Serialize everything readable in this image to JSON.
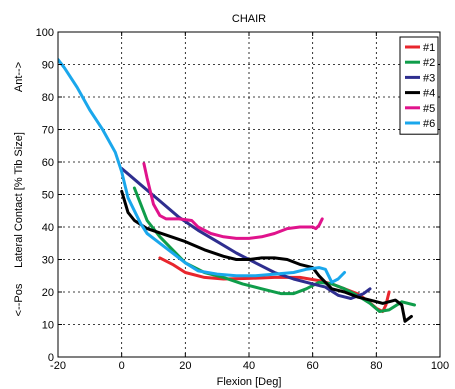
{
  "chart_data": {
    "type": "line",
    "title": "CHAIR",
    "xlabel": "Flexion [Deg]",
    "ylabel": "Lateral Contact [% Tib Size]",
    "y_annotations": {
      "top": "Ant-->",
      "bottom": "<--Pos"
    },
    "xlim": [
      -20,
      100
    ],
    "ylim": [
      0,
      100
    ],
    "xticks": [
      -20,
      0,
      20,
      40,
      60,
      80,
      100
    ],
    "yticks": [
      0,
      10,
      20,
      30,
      40,
      50,
      60,
      70,
      80,
      90,
      100
    ],
    "grid": true,
    "legend_position": "top-right",
    "series": [
      {
        "name": "#1",
        "color": "#e8262d",
        "points": [
          [
            12,
            30.5
          ],
          [
            16,
            28.5
          ],
          [
            20,
            26
          ],
          [
            26,
            24.5
          ],
          [
            32,
            24
          ],
          [
            40,
            24.2
          ],
          [
            48,
            24.5
          ],
          [
            56,
            24.5
          ],
          [
            62,
            23.5
          ],
          [
            66,
            22.5
          ],
          [
            70,
            21
          ],
          [
            74,
            19.5
          ],
          [
            77,
            17.5
          ],
          [
            80,
            15
          ],
          [
            82,
            14
          ],
          [
            83,
            16
          ],
          [
            84,
            20
          ]
        ]
      },
      {
        "name": "#2",
        "color": "#0f9d4a",
        "points": [
          [
            4,
            52
          ],
          [
            6,
            47
          ],
          [
            8,
            42
          ],
          [
            12,
            37
          ],
          [
            16,
            33
          ],
          [
            20,
            29
          ],
          [
            26,
            26
          ],
          [
            32,
            24.5
          ],
          [
            38,
            22.5
          ],
          [
            44,
            21
          ],
          [
            50,
            19.5
          ],
          [
            54,
            19.5
          ],
          [
            58,
            21
          ],
          [
            62,
            23
          ],
          [
            66,
            22.5
          ],
          [
            70,
            21
          ],
          [
            74,
            19
          ],
          [
            78,
            16.5
          ],
          [
            81,
            14
          ],
          [
            84,
            14.5
          ],
          [
            88,
            17
          ],
          [
            92,
            16
          ]
        ]
      },
      {
        "name": "#3",
        "color": "#2e2e8f",
        "points": [
          [
            0,
            58
          ],
          [
            6,
            53
          ],
          [
            12,
            48
          ],
          [
            18,
            43
          ],
          [
            24,
            39
          ],
          [
            30,
            35.5
          ],
          [
            36,
            32
          ],
          [
            42,
            29
          ],
          [
            48,
            26
          ],
          [
            54,
            24
          ],
          [
            60,
            22.5
          ],
          [
            64,
            21.5
          ],
          [
            68,
            19
          ],
          [
            72,
            18
          ],
          [
            76,
            19.5
          ],
          [
            78,
            21
          ]
        ]
      },
      {
        "name": "#4",
        "color": "#000000",
        "points": [
          [
            0,
            51
          ],
          [
            2,
            44.5
          ],
          [
            4,
            42
          ],
          [
            8,
            39.5
          ],
          [
            14,
            37.5
          ],
          [
            20,
            35.5
          ],
          [
            26,
            33
          ],
          [
            32,
            31
          ],
          [
            36,
            30
          ],
          [
            40,
            30
          ],
          [
            44,
            30.5
          ],
          [
            48,
            30.5
          ],
          [
            52,
            30
          ],
          [
            56,
            28.5
          ],
          [
            60,
            27.5
          ],
          [
            62,
            25
          ],
          [
            64,
            23
          ],
          [
            66,
            21
          ],
          [
            70,
            20
          ],
          [
            74,
            18.5
          ],
          [
            78,
            17.5
          ],
          [
            82,
            16.5
          ],
          [
            86,
            17.5
          ],
          [
            88,
            16
          ],
          [
            89,
            11
          ],
          [
            91,
            12.5
          ]
        ]
      },
      {
        "name": "#5",
        "color": "#e0138c",
        "points": [
          [
            7,
            59.5
          ],
          [
            8,
            55
          ],
          [
            10,
            47
          ],
          [
            12,
            43.5
          ],
          [
            14,
            42.5
          ],
          [
            18,
            42.5
          ],
          [
            22,
            42
          ],
          [
            24,
            40
          ],
          [
            28,
            38
          ],
          [
            32,
            37
          ],
          [
            36,
            36.5
          ],
          [
            40,
            36.5
          ],
          [
            44,
            37
          ],
          [
            48,
            38
          ],
          [
            52,
            39.5
          ],
          [
            56,
            40
          ],
          [
            60,
            40
          ],
          [
            61,
            39.5
          ],
          [
            62,
            40.5
          ],
          [
            63,
            42.5
          ]
        ]
      },
      {
        "name": "#6",
        "color": "#1aa7ec",
        "points": [
          [
            -20,
            91.5
          ],
          [
            -18,
            89
          ],
          [
            -14,
            83
          ],
          [
            -10,
            76
          ],
          [
            -6,
            70
          ],
          [
            -2,
            63
          ],
          [
            0,
            57
          ],
          [
            2,
            49
          ],
          [
            4,
            45
          ],
          [
            6,
            41
          ],
          [
            8,
            38
          ],
          [
            12,
            35
          ],
          [
            16,
            32
          ],
          [
            20,
            29
          ],
          [
            24,
            26.5
          ],
          [
            30,
            25.5
          ],
          [
            36,
            25
          ],
          [
            42,
            25
          ],
          [
            48,
            25.5
          ],
          [
            54,
            26
          ],
          [
            58,
            27
          ],
          [
            62,
            27.5
          ],
          [
            64,
            27
          ],
          [
            66,
            23
          ],
          [
            68,
            24
          ],
          [
            70,
            26
          ]
        ]
      }
    ]
  }
}
